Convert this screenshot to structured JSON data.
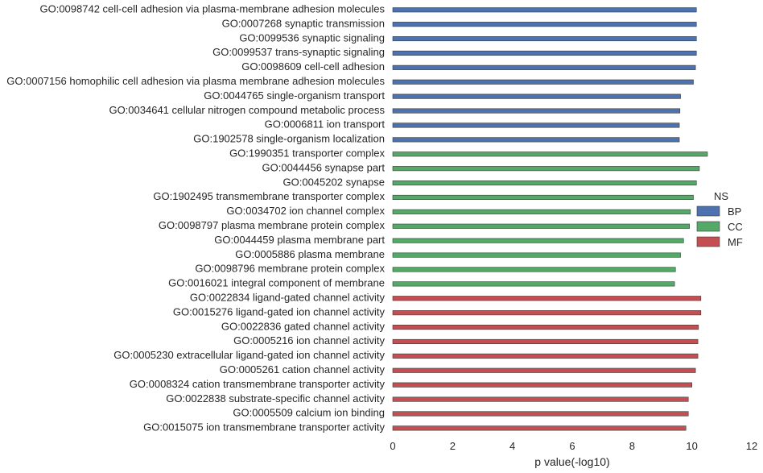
{
  "chart_data": {
    "type": "bar",
    "orientation": "horizontal",
    "xlabel": "p value(-log10)",
    "xlim": [
      0,
      12
    ],
    "xticks": [
      0,
      2,
      4,
      6,
      8,
      10,
      12
    ],
    "grid": false,
    "legend": {
      "title": "NS",
      "placement": "right",
      "entries": [
        {
          "name": "BP",
          "color": "#4c72b0"
        },
        {
          "name": "CC",
          "color": "#55a868"
        },
        {
          "name": "MF",
          "color": "#c44e52"
        }
      ]
    },
    "bars": [
      {
        "label": "GO:0098742 cell-cell adhesion via plasma-membrane adhesion molecules",
        "ns": "BP",
        "value": 10.15
      },
      {
        "label": "GO:0007268 synaptic transmission",
        "ns": "BP",
        "value": 10.15
      },
      {
        "label": "GO:0099536 synaptic signaling",
        "ns": "BP",
        "value": 10.15
      },
      {
        "label": "GO:0099537 trans-synaptic signaling",
        "ns": "BP",
        "value": 10.15
      },
      {
        "label": "GO:0098609 cell-cell adhesion",
        "ns": "BP",
        "value": 10.12
      },
      {
        "label": "GO:0007156 homophilic cell adhesion via plasma membrane adhesion molecules",
        "ns": "BP",
        "value": 10.05
      },
      {
        "label": "GO:0044765 single-organism transport",
        "ns": "BP",
        "value": 9.62
      },
      {
        "label": "GO:0034641 cellular nitrogen compound metabolic process",
        "ns": "BP",
        "value": 9.6
      },
      {
        "label": "GO:0006811 ion transport",
        "ns": "BP",
        "value": 9.58
      },
      {
        "label": "GO:1902578 single-organism localization",
        "ns": "BP",
        "value": 9.58
      },
      {
        "label": "GO:1990351 transporter complex",
        "ns": "CC",
        "value": 10.52
      },
      {
        "label": "GO:0044456 synapse part",
        "ns": "CC",
        "value": 10.25
      },
      {
        "label": "GO:0045202 synapse",
        "ns": "CC",
        "value": 10.15
      },
      {
        "label": "GO:1902495 transmembrane transporter complex",
        "ns": "CC",
        "value": 10.05
      },
      {
        "label": "GO:0034702 ion channel complex",
        "ns": "CC",
        "value": 9.95
      },
      {
        "label": "GO:0098797 plasma membrane protein complex",
        "ns": "CC",
        "value": 9.92
      },
      {
        "label": "GO:0044459 plasma membrane part",
        "ns": "CC",
        "value": 9.72
      },
      {
        "label": "GO:0005886 plasma membrane",
        "ns": "CC",
        "value": 9.62
      },
      {
        "label": "GO:0098796 membrane protein complex",
        "ns": "CC",
        "value": 9.45
      },
      {
        "label": "GO:0016021 integral component of membrane",
        "ns": "CC",
        "value": 9.42
      },
      {
        "label": "GO:0022834 ligand-gated channel activity",
        "ns": "MF",
        "value": 10.3
      },
      {
        "label": "GO:0015276 ligand-gated ion channel activity",
        "ns": "MF",
        "value": 10.3
      },
      {
        "label": "GO:0022836 gated channel activity",
        "ns": "MF",
        "value": 10.22
      },
      {
        "label": "GO:0005216 ion channel activity",
        "ns": "MF",
        "value": 10.2
      },
      {
        "label": "GO:0005230 extracellular ligand-gated ion channel activity",
        "ns": "MF",
        "value": 10.2
      },
      {
        "label": "GO:0005261 cation channel activity",
        "ns": "MF",
        "value": 10.12
      },
      {
        "label": "GO:0008324 cation transmembrane transporter activity",
        "ns": "MF",
        "value": 10.0
      },
      {
        "label": "GO:0022838 substrate-specific channel activity",
        "ns": "MF",
        "value": 9.88
      },
      {
        "label": "GO:0005509 calcium ion binding",
        "ns": "MF",
        "value": 9.88
      },
      {
        "label": "GO:0015075 ion transmembrane transporter activity",
        "ns": "MF",
        "value": 9.8
      }
    ]
  }
}
